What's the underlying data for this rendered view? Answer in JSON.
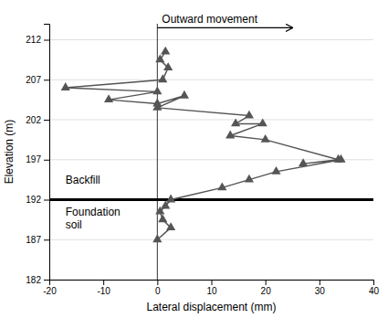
{
  "chart_data": {
    "type": "line",
    "xlabel": "Lateral displacement (mm)",
    "ylabel": "Elevation (m)",
    "x": [
      1.5,
      0.5,
      2.0,
      1.0,
      -17.0,
      0.0,
      -9.0,
      0.0,
      5.0,
      0.0,
      17.0,
      14.5,
      19.5,
      13.5,
      20.0,
      33.5,
      27.0,
      34.0,
      22.0,
      17.0,
      12.0,
      2.5,
      1.5,
      0.5,
      1.0,
      2.5,
      0.0
    ],
    "values": [
      210.5,
      209.5,
      208.5,
      207.0,
      206.0,
      205.5,
      204.5,
      204.0,
      205.0,
      203.5,
      202.5,
      201.5,
      201.5,
      200.0,
      199.5,
      197.0,
      196.5,
      197.0,
      195.5,
      194.5,
      193.5,
      192.0,
      191.2,
      190.5,
      189.5,
      188.5,
      187.0
    ],
    "color": "#555555",
    "marker": "triangle",
    "xlim": [
      -20,
      40
    ],
    "ylim": [
      182,
      214
    ],
    "xticks": [
      -20,
      -10,
      0,
      10,
      20,
      30,
      40
    ],
    "yticks": [
      182,
      187,
      192,
      197,
      202,
      207,
      212
    ],
    "grid": "y",
    "reference_lines": [
      {
        "axis": "x",
        "value": 0,
        "color": "#333333"
      },
      {
        "axis": "y",
        "value": 192,
        "color": "#000000"
      }
    ],
    "annotations": [
      {
        "text": "Outward movement",
        "x": 0,
        "x_end": 25,
        "y": 213.5
      },
      {
        "text": "Backfill",
        "x": -17,
        "y": 194.5
      },
      {
        "text": "Foundation\nsoil",
        "x": -17,
        "y": 190.5
      }
    ]
  }
}
